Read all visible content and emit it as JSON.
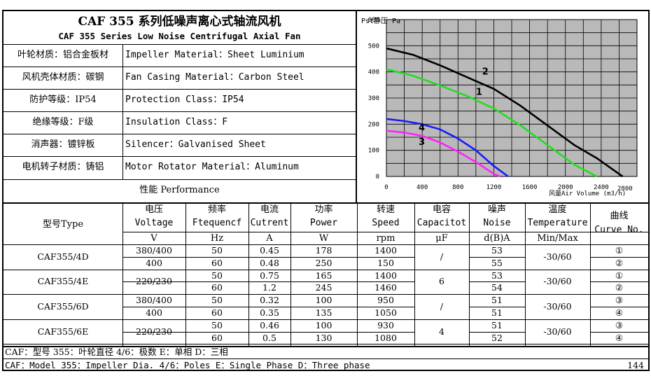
{
  "title_cn": "CAF 355 系列低噪声离心式轴流风机",
  "title_en": "CAF 355 Series Low Noise Centrifugal Axial Fan",
  "specs": [
    {
      "cn": "叶轮材质：铝合金板材",
      "en": "Impeller Material：Sheet Luminium"
    },
    {
      "cn": "风机壳体材质：碳钢",
      "en": "Fan Casing Material：Carbon Steel"
    },
    {
      "cn": "防护等级：IP54",
      "en": "Protection Class：IP54"
    },
    {
      "cn": "绝缘等级：F级",
      "en": "Insulation Class：F"
    },
    {
      "cn": "消声器：镀锌板",
      "en": "Silencer：Galvanised Sheet"
    },
    {
      "cn": "电机转子材质：铸铝",
      "en": "Motor Rotator Material：Aluminum"
    }
  ],
  "performance_label": "性能  Performance",
  "chart_data": {
    "type": "line",
    "ylabel": "Pst静压 Pa",
    "xlabel": "风量Air Volume (m3/h)",
    "xlim": [
      0,
      2800
    ],
    "ylim": [
      0,
      600
    ],
    "x_ticks": [
      0,
      400,
      800,
      1200,
      1600,
      2000,
      2400,
      2800
    ],
    "y_ticks": [
      0,
      100,
      200,
      300,
      400,
      500,
      600
    ],
    "grid": true,
    "series": [
      {
        "name": "1",
        "color": "#22dd22",
        "x": [
          0,
          300,
          600,
          900,
          1200,
          1500,
          1800,
          2100,
          2350
        ],
        "y": [
          410,
          385,
          348,
          308,
          260,
          195,
          120,
          45,
          0
        ]
      },
      {
        "name": "2",
        "color": "#000000",
        "x": [
          0,
          300,
          600,
          900,
          1200,
          1500,
          1800,
          2100,
          2350,
          2640
        ],
        "y": [
          490,
          465,
          425,
          380,
          335,
          270,
          195,
          120,
          70,
          0
        ]
      },
      {
        "name": "3",
        "color": "#ff22ff",
        "x": [
          0,
          200,
          400,
          600,
          800,
          1000,
          1200,
          1270
        ],
        "y": [
          175,
          168,
          155,
          130,
          95,
          55,
          10,
          0
        ]
      },
      {
        "name": "4",
        "color": "#1a1aff",
        "x": [
          0,
          200,
          400,
          600,
          800,
          1000,
          1200,
          1360
        ],
        "y": [
          220,
          212,
          200,
          180,
          145,
          100,
          40,
          0
        ]
      }
    ]
  },
  "table": {
    "headers": [
      {
        "cn": "型号Type",
        "en": "",
        "unit": ""
      },
      {
        "cn": "电压",
        "en": "Voltage",
        "unit": "V"
      },
      {
        "cn": "频率",
        "en": "Ftequencf",
        "unit": "Hz"
      },
      {
        "cn": "电流",
        "en": "Cutrent",
        "unit": "A"
      },
      {
        "cn": "功率",
        "en": "Power",
        "unit": "W"
      },
      {
        "cn": "转速",
        "en": "Speed",
        "unit": "rpm"
      },
      {
        "cn": "电容",
        "en": "Capacitot",
        "unit": "μF"
      },
      {
        "cn": "噪声",
        "en": "Noise",
        "unit": "d(B)A"
      },
      {
        "cn": "温度",
        "en": "Temperature",
        "unit": "Min/Max"
      },
      {
        "cn": "曲线",
        "en": "Curve No.",
        "unit": ""
      }
    ],
    "models": [
      {
        "type": "CAF355/4D",
        "capacitor": "/",
        "temperature": "-30/60",
        "rows": [
          {
            "voltage": "380/400",
            "freq": "50",
            "current": "0.45",
            "power": "178",
            "speed": "1400",
            "noise": "53",
            "curve": "1"
          },
          {
            "voltage": "400",
            "freq": "60",
            "current": "0.48",
            "power": "250",
            "speed": "150",
            "noise": "55",
            "curve": "2"
          }
        ]
      },
      {
        "type": "CAF355/4E",
        "capacitor": "6",
        "temperature": "-30/60",
        "voltage": "220/230",
        "rows": [
          {
            "freq": "50",
            "current": "0.75",
            "power": "165",
            "speed": "1400",
            "noise": "53",
            "curve": "1"
          },
          {
            "freq": "60",
            "current": "1.2",
            "power": "245",
            "speed": "1460",
            "noise": "54",
            "curve": "2"
          }
        ]
      },
      {
        "type": "CAF355/6D",
        "capacitor": "/",
        "temperature": "-30/60",
        "rows": [
          {
            "voltage": "380/400",
            "freq": "50",
            "current": "0.32",
            "power": "100",
            "speed": "950",
            "noise": "51",
            "curve": "3"
          },
          {
            "voltage": "400",
            "freq": "60",
            "current": "0.35",
            "power": "135",
            "speed": "1050",
            "noise": "51",
            "curve": "4"
          }
        ]
      },
      {
        "type": "CAF355/6E",
        "capacitor": "4",
        "temperature": "-30/60",
        "voltage": "220/230",
        "rows": [
          {
            "freq": "50",
            "current": "0.46",
            "power": "100",
            "speed": "930",
            "noise": "51",
            "curve": "3"
          },
          {
            "freq": "60",
            "current": "0.5",
            "power": "130",
            "speed": "1080",
            "noise": "52",
            "curve": "4"
          }
        ]
      }
    ]
  },
  "footer": {
    "line1": "CAF：型号    355：叶轮直径      4/6：极数         E：单相        D：三相",
    "line2": "CAF：Model   355：Impeller Dia.  4/6：Poles      E：Single Phase  D：Three phase",
    "page": "144"
  }
}
